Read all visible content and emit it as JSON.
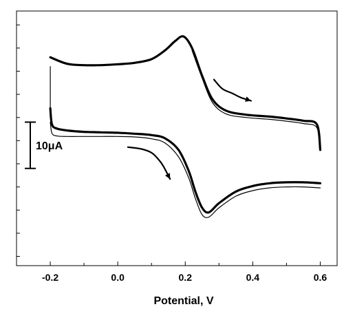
{
  "chart_data": {
    "type": "line",
    "title": "",
    "xlabel": "Potential, V",
    "ylabel": "",
    "xlim": [
      -0.3,
      0.65
    ],
    "ylim": [
      -24,
      31
    ],
    "x_ticks": [
      -0.2,
      0.0,
      0.2,
      0.4,
      0.6
    ],
    "x_tick_labels": [
      "-0.2",
      "0.0",
      "0.2",
      "0.4",
      "0.6"
    ],
    "y_minor_ticks": [
      -22,
      -17,
      -12,
      -7,
      -2,
      3,
      8,
      13,
      18,
      23,
      28
    ],
    "y_tick_labels_shown": false,
    "grid": false,
    "scale_bar": {
      "label": "10μA",
      "value": 10,
      "unit": "μA",
      "y_from": -3,
      "y_to": 7
    },
    "series": [
      {
        "style": "thick",
        "segments": [
          {
            "x": [
              -0.2,
              -0.15,
              -0.1,
              -0.05,
              0.0,
              0.05,
              0.1,
              0.14,
              0.17,
              0.195,
              0.22,
              0.25,
              0.28,
              0.32,
              0.38,
              0.45,
              0.5,
              0.55,
              0.59,
              0.6
            ],
            "y": [
              21,
              19.6,
              19.3,
              19.3,
              19.5,
              19.8,
              20.6,
              22.5,
              24.5,
              25.5,
              23,
              17,
              12,
              9.5,
              8.6,
              8.2,
              7.8,
              7.3,
              6.5,
              1
            ]
          },
          {
            "x": [
              -0.2,
              -0.195,
              -0.18,
              -0.15,
              -0.1,
              -0.05,
              0.0,
              0.05,
              0.1,
              0.14,
              0.18,
              0.21,
              0.23,
              0.25,
              0.27,
              0.3,
              0.35,
              0.4,
              0.45,
              0.5,
              0.55,
              0.6
            ],
            "y": [
              10,
              6.5,
              5.6,
              5.2,
              4.9,
              4.8,
              4.7,
              4.5,
              4.2,
              3.5,
              1,
              -3.5,
              -8,
              -11.5,
              -12.5,
              -10.5,
              -8,
              -6.8,
              -6.2,
              -6,
              -6,
              -6.2
            ]
          }
        ]
      },
      {
        "style": "thin",
        "segments": [
          {
            "x": [
              -0.2,
              -0.2
            ],
            "y": [
              19,
              10
            ]
          },
          {
            "x": [
              -0.2,
              -0.195,
              -0.18,
              -0.15,
              -0.1,
              -0.05,
              0.0,
              0.05,
              0.1,
              0.14,
              0.18,
              0.21,
              0.23,
              0.25,
              0.27,
              0.3,
              0.35,
              0.4,
              0.45,
              0.5,
              0.55,
              0.6
            ],
            "y": [
              7,
              4.6,
              4.0,
              3.9,
              3.9,
              3.9,
              3.9,
              3.8,
              3.4,
              2.5,
              -0.5,
              -5,
              -9.5,
              -13,
              -13.5,
              -11.5,
              -9,
              -7.8,
              -7.2,
              -7,
              -7,
              -7.2
            ]
          },
          {
            "x": [
              0.22,
              0.25,
              0.28,
              0.32,
              0.38,
              0.45,
              0.5,
              0.55,
              0.59,
              0.6
            ],
            "y": [
              22.5,
              16.5,
              11.3,
              8.8,
              8.0,
              7.6,
              7.2,
              6.7,
              5.8,
              1
            ]
          }
        ]
      }
    ],
    "arrows": [
      {
        "x": [
          0.285,
          0.31,
          0.34,
          0.365,
          0.395
        ],
        "y": [
          16.2,
          14.2,
          13.2,
          12.3,
          11.6
        ]
      },
      {
        "x": [
          0.03,
          0.07,
          0.1,
          0.12,
          0.135,
          0.155
        ],
        "y": [
          1.6,
          1.2,
          0.4,
          -1.0,
          -2.5,
          -5.3
        ]
      }
    ]
  }
}
